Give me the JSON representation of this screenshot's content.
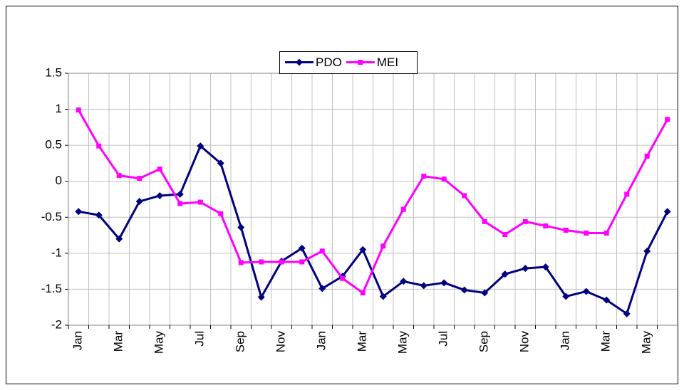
{
  "chart_data": {
    "type": "line",
    "categories": [
      "Jan",
      null,
      "Mar",
      null,
      "May",
      null,
      "Jul",
      null,
      "Sep",
      null,
      "Nov",
      null,
      "Jan",
      null,
      "Mar",
      null,
      "May",
      null,
      "Jul",
      null,
      "Sep",
      null,
      "Nov",
      null,
      "Jan",
      null,
      "Mar",
      null,
      "May",
      null
    ],
    "series": [
      {
        "name": "PDO",
        "color": "#000080",
        "marker": "diamond",
        "values": [
          -0.42,
          -0.47,
          -0.8,
          -0.28,
          -0.2,
          -0.18,
          0.49,
          0.25,
          -0.64,
          -1.61,
          -1.11,
          -0.93,
          -1.49,
          -1.32,
          -0.95,
          -1.6,
          -1.39,
          -1.45,
          -1.41,
          -1.51,
          -1.55,
          -1.29,
          -1.21,
          -1.19,
          -1.6,
          -1.53,
          -1.65,
          -1.84,
          -0.97,
          -0.42
        ]
      },
      {
        "name": "MEI",
        "color": "#ff00ff",
        "marker": "square",
        "values": [
          0.99,
          0.49,
          0.08,
          0.04,
          0.17,
          -0.31,
          -0.29,
          -0.45,
          -1.13,
          -1.12,
          -1.12,
          -1.12,
          -0.97,
          -1.35,
          -1.55,
          -0.9,
          -0.39,
          0.07,
          0.03,
          -0.2,
          -0.56,
          -0.74,
          -0.56,
          -0.62,
          -0.68,
          -0.72,
          -0.72,
          -0.18,
          0.35,
          0.86
        ]
      }
    ],
    "ylim": [
      -2,
      1.5
    ],
    "yticks": [
      -2,
      -1.5,
      -1,
      -0.5,
      0,
      0.5,
      1,
      1.5
    ],
    "grid": true,
    "legend": "top"
  }
}
